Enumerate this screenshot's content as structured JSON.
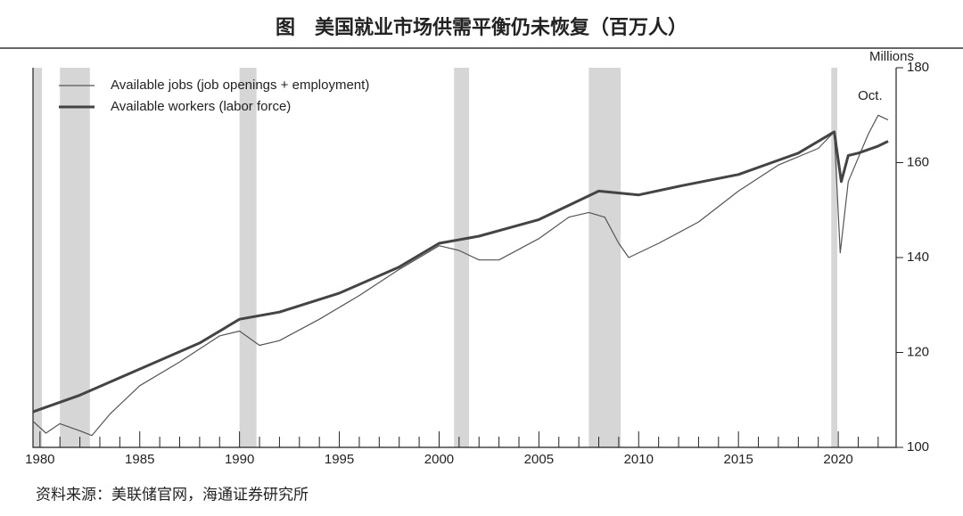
{
  "chart_data": {
    "type": "line",
    "title": "图　美国就业市场供需平衡仍未恢复（百万人）",
    "source": "资料来源：美联储官网，海通证券研究所",
    "y_unit_label": "Millions",
    "annotations": [
      {
        "text": "Oct.",
        "x": 2021.6,
        "y": 174
      }
    ],
    "y_axis_position": "right",
    "legend_position": "top-left",
    "grid": false,
    "xlim": [
      1979.65,
      2022.9
    ],
    "ylim": [
      100,
      180
    ],
    "xticks": [
      1980,
      1985,
      1990,
      1995,
      2000,
      2005,
      2010,
      2015,
      2020
    ],
    "xminorticks": [
      1981,
      1982,
      1983,
      1984,
      1986,
      1987,
      1988,
      1989,
      1991,
      1992,
      1993,
      1994,
      1996,
      1997,
      1998,
      1999,
      2001,
      2002,
      2003,
      2004,
      2006,
      2007,
      2008,
      2009,
      2011,
      2012,
      2013,
      2014,
      2016,
      2017,
      2018,
      2019,
      2021,
      2022
    ],
    "yticks": [
      100,
      120,
      140,
      160,
      180
    ],
    "shaded_periods": [
      [
        1979.65,
        1980.1
      ],
      [
        1981.0,
        1982.5
      ],
      [
        1990.0,
        1990.85
      ],
      [
        2000.75,
        2001.5
      ],
      [
        2007.5,
        2009.1
      ],
      [
        2019.65,
        2019.95
      ]
    ],
    "shade_color": "#d6d6d6",
    "series": [
      {
        "name": "Available jobs (job openings + employment)",
        "color": "#555555",
        "width": 1.2,
        "x": [
          1979.65,
          1980.3,
          1981.0,
          1982.0,
          1982.6,
          1983.5,
          1985.0,
          1987.0,
          1989.0,
          1990.0,
          1991.0,
          1992.0,
          1994.0,
          1996.0,
          1998.0,
          2000.0,
          2001.0,
          2002.0,
          2003.0,
          2005.0,
          2006.5,
          2007.5,
          2008.3,
          2009.0,
          2009.5,
          2011.0,
          2013.0,
          2015.0,
          2017.0,
          2019.0,
          2019.8,
          2020.1,
          2020.5,
          2021.0,
          2021.5,
          2022.0,
          2022.5
        ],
        "values": [
          105.5,
          103,
          105,
          103.5,
          102.5,
          107,
          113,
          118,
          123.5,
          124.5,
          121.5,
          122.5,
          127,
          132,
          137.5,
          142.5,
          141.5,
          139.5,
          139.5,
          144,
          148.5,
          149.5,
          148.5,
          143,
          140,
          143,
          147.5,
          154,
          159.5,
          163,
          166.5,
          141,
          156,
          161,
          166,
          170,
          169
        ]
      },
      {
        "name": "Available workers (labor force)",
        "color": "#444444",
        "width": 3,
        "x": [
          1979.65,
          1982.0,
          1985.0,
          1988.0,
          1990.0,
          1992.0,
          1995.0,
          1998.0,
          2000.0,
          2002.0,
          2005.0,
          2008.0,
          2010.0,
          2012.0,
          2015.0,
          2018.0,
          2019.8,
          2020.15,
          2020.5,
          2021.0,
          2022.0,
          2022.5
        ],
        "values": [
          107.5,
          111,
          116.5,
          122,
          127,
          128.5,
          132.5,
          138,
          143,
          144.5,
          148,
          154,
          153.2,
          155,
          157.5,
          162,
          166.5,
          156,
          161.5,
          162,
          163.5,
          164.5
        ]
      }
    ]
  }
}
